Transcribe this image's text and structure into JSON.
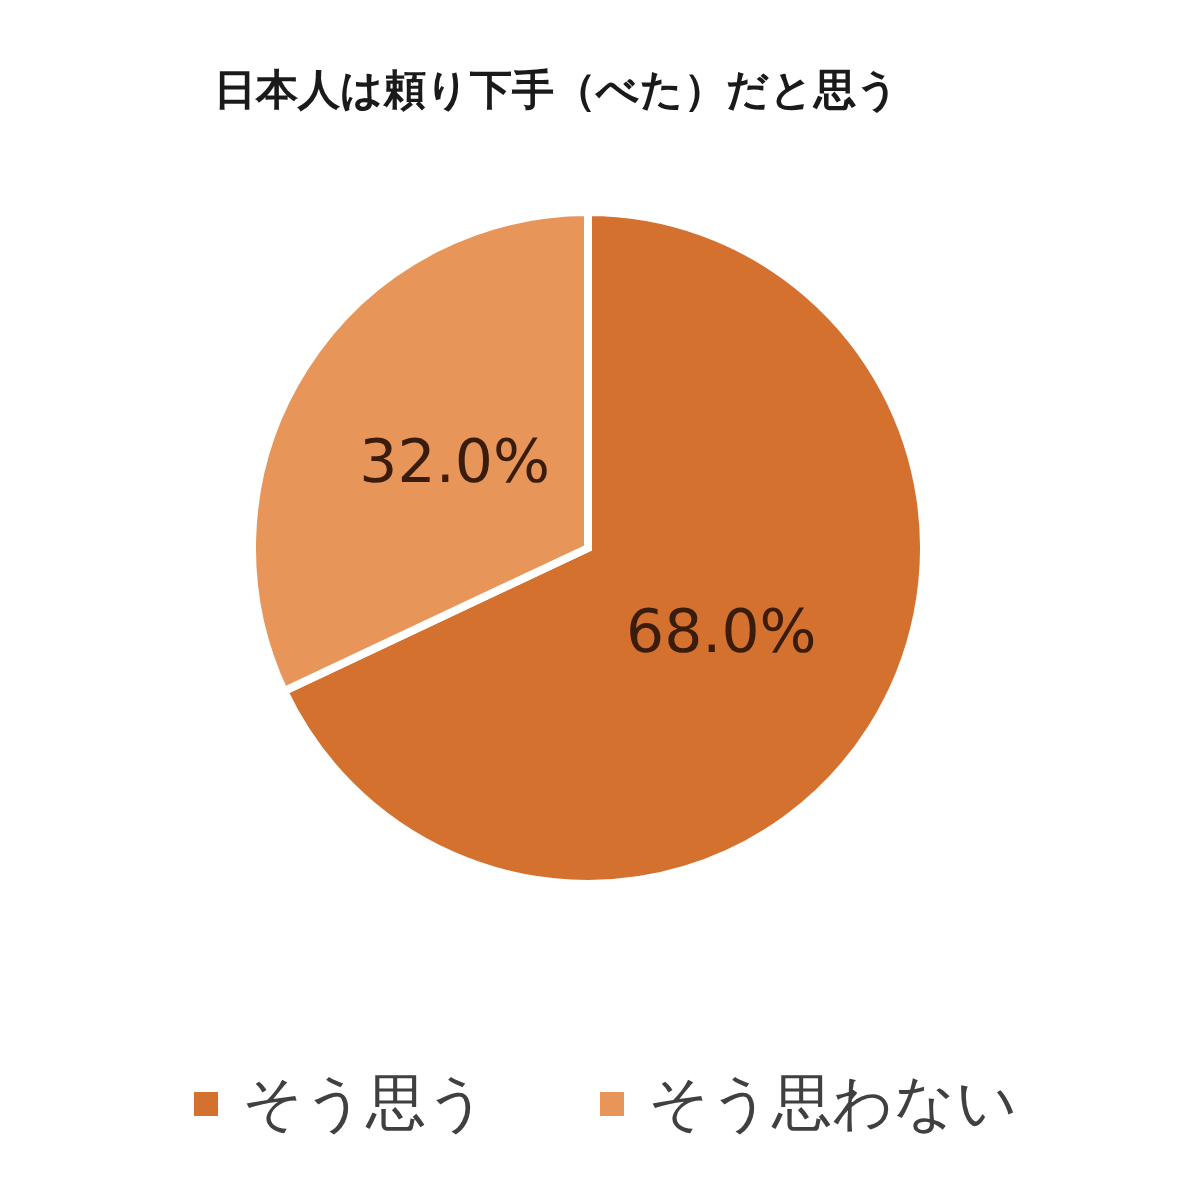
{
  "chart_data": {
    "type": "pie",
    "title": "日本人は頼り下手（べた）だと思う",
    "categories": [
      "そう思う",
      "そう思わない"
    ],
    "values": [
      68.0,
      32.0
    ],
    "colors": [
      "#d5712f",
      "#e8955a"
    ],
    "value_labels": [
      "68.0%",
      "32.0%"
    ],
    "legend": "bottom"
  }
}
